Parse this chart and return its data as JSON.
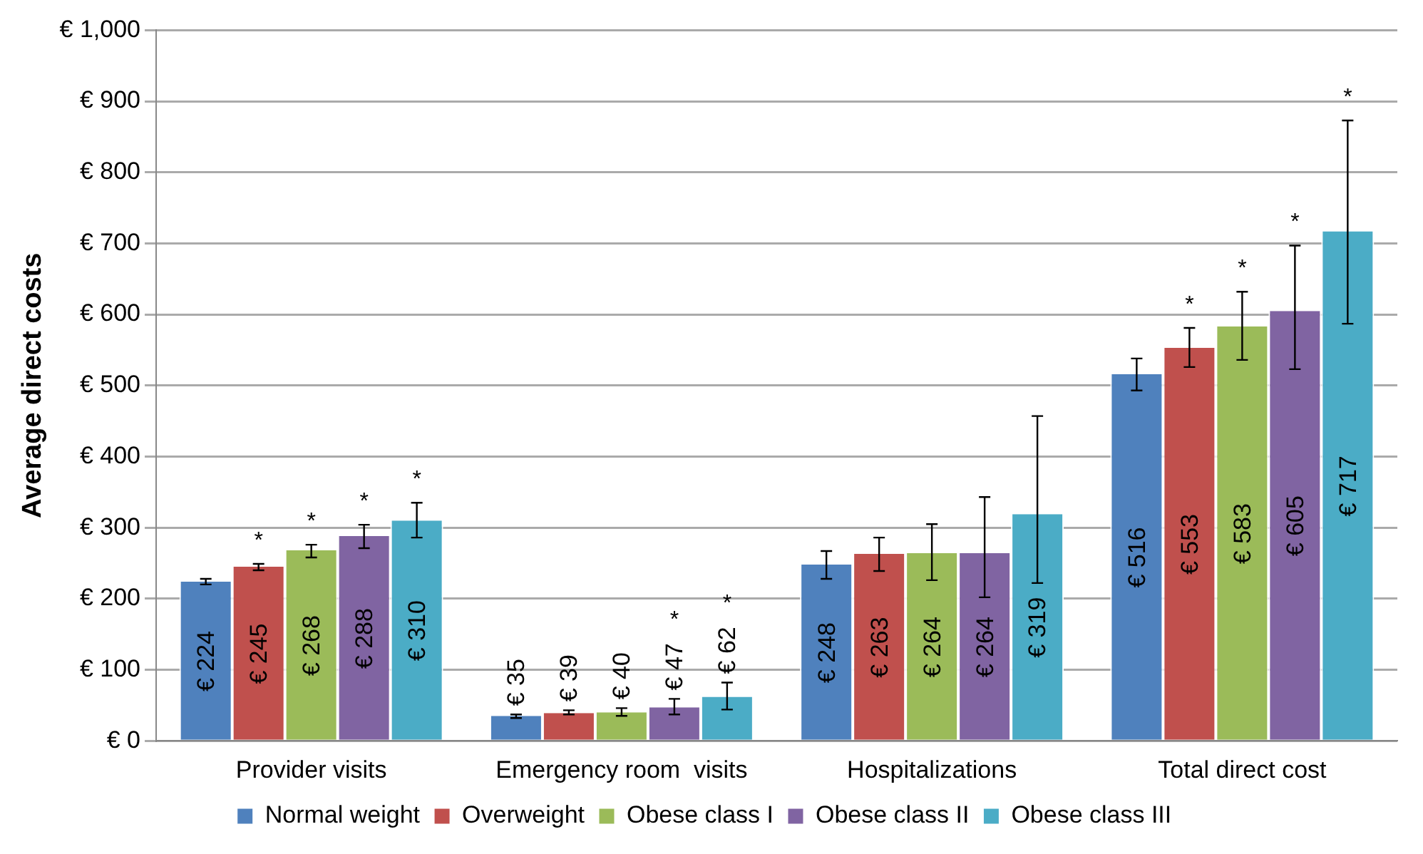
{
  "chart_data": {
    "type": "bar",
    "ylabel": "Average direct costs",
    "categories": [
      "Provider visits",
      "Emergency room  visits",
      "Hospitalizations",
      "Total direct cost"
    ],
    "series": [
      {
        "name": "Normal weight",
        "color": "#4f81bd",
        "values": [
          224,
          35,
          248,
          516
        ],
        "value_labels": [
          "€ 224",
          "€ 35",
          "€ 248",
          "€ 516"
        ],
        "errors": [
          [
            220,
            228
          ],
          [
            32,
            37
          ],
          [
            228,
            267
          ],
          [
            493,
            538
          ]
        ]
      },
      {
        "name": "Overweight",
        "color": "#c0504d",
        "values": [
          245,
          39,
          263,
          553
        ],
        "value_labels": [
          "€ 245",
          "€ 39",
          "€ 263",
          "€ 553"
        ],
        "errors": [
          [
            240,
            249
          ],
          [
            37,
            43
          ],
          [
            239,
            286
          ],
          [
            526,
            581
          ]
        ]
      },
      {
        "name": "Obese class I",
        "color": "#9bbb59",
        "values": [
          268,
          40,
          264,
          583
        ],
        "value_labels": [
          "€ 268",
          "€ 40",
          "€ 264",
          "€ 583"
        ],
        "errors": [
          [
            258,
            276
          ],
          [
            35,
            46
          ],
          [
            226,
            305
          ],
          [
            536,
            632
          ]
        ]
      },
      {
        "name": "Obese class II",
        "color": "#8064a2",
        "values": [
          288,
          47,
          264,
          605
        ],
        "value_labels": [
          "€ 288",
          "€ 47",
          "€ 264",
          "€ 605"
        ],
        "errors": [
          [
            271,
            304
          ],
          [
            37,
            59
          ],
          [
            202,
            343
          ],
          [
            523,
            697
          ]
        ]
      },
      {
        "name": "Obese class III",
        "color": "#4bacc6",
        "values": [
          310,
          62,
          319,
          717
        ],
        "value_labels": [
          "€ 310",
          "€ 62",
          "€ 319",
          "€ 717"
        ],
        "errors": [
          [
            286,
            335
          ],
          [
            44,
            82
          ],
          [
            222,
            457
          ],
          [
            587,
            873
          ]
        ]
      }
    ],
    "ylim": [
      0,
      1000
    ],
    "yticks": [
      {
        "value": 0,
        "label": "€ 0"
      },
      {
        "value": 100,
        "label": "€ 100"
      },
      {
        "value": 200,
        "label": "€ 200"
      },
      {
        "value": 300,
        "label": "€ 300"
      },
      {
        "value": 400,
        "label": "€ 400"
      },
      {
        "value": 500,
        "label": "€ 500"
      },
      {
        "value": 600,
        "label": "€ 600"
      },
      {
        "value": 700,
        "label": "€ 700"
      },
      {
        "value": 800,
        "label": "€ 800"
      },
      {
        "value": 900,
        "label": "€ 900"
      },
      {
        "value": 1000,
        "label": "€ 1,000"
      }
    ],
    "grid": "y",
    "legend": "bottom",
    "annotations": [
      "*",
      "*",
      "*",
      "*",
      "*",
      "*",
      "*",
      "*",
      "*",
      "*"
    ]
  }
}
